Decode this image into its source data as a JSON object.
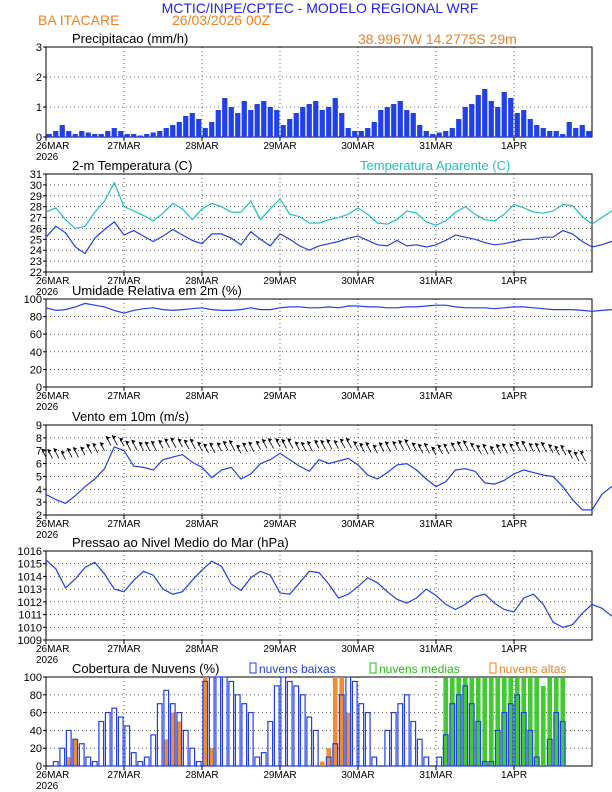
{
  "header": {
    "agency": "MCTIC/INPE/CPTEC - MODELO REGIONAL WRF",
    "location": "BA ITACARE",
    "run": "26/03/2026 00Z",
    "coords": "38.9967W 14.2775S 29m"
  },
  "colors": {
    "title": "#2222ee",
    "orange": "#f08020",
    "blue": "#2040e8",
    "cyan": "#20c0c0",
    "green": "#22c010",
    "black": "#000000"
  },
  "time_axis": {
    "days": [
      "26MAR",
      "27MAR",
      "28MAR",
      "29MAR",
      "30MAR",
      "31MAR",
      "1APR"
    ],
    "year": "2026",
    "hours_total": 168
  },
  "chart_data": [
    {
      "type": "bar",
      "title": "Precipitacao (mm/h)",
      "ylim": [
        0,
        3
      ],
      "yticks": [
        "0",
        "1",
        "2",
        "3"
      ],
      "x_hours_step": 2,
      "values": [
        0.1,
        0.2,
        0.4,
        0.2,
        0.1,
        0.2,
        0.15,
        0.1,
        0.1,
        0.2,
        0.3,
        0.2,
        0.1,
        0.1,
        0.05,
        0.1,
        0.15,
        0.2,
        0.3,
        0.4,
        0.5,
        0.7,
        0.8,
        0.6,
        0.3,
        0.5,
        0.9,
        1.3,
        1.0,
        0.8,
        1.2,
        0.9,
        1.1,
        1.2,
        1.0,
        0.9,
        0.4,
        0.6,
        0.8,
        1.0,
        1.1,
        1.2,
        0.9,
        1.0,
        1.3,
        0.8,
        0.3,
        0.2,
        0.2,
        0.3,
        0.5,
        0.9,
        1.0,
        1.1,
        1.2,
        0.9,
        0.8,
        0.4,
        0.2,
        0.1,
        0.15,
        0.2,
        0.3,
        0.6,
        1.0,
        1.1,
        1.4,
        1.6,
        1.2,
        1.0,
        1.5,
        1.3,
        0.8,
        0.9,
        0.6,
        0.4,
        0.3,
        0.2,
        0.2,
        0.1,
        0.5,
        0.3,
        0.4,
        0.2
      ]
    },
    {
      "type": "line",
      "title": "2-m Temperatura (C)",
      "legend": "Temperatura Aparente (C)",
      "ylim": [
        22,
        31
      ],
      "yticks": [
        "22",
        "23",
        "24",
        "25",
        "26",
        "27",
        "28",
        "29",
        "30",
        "31"
      ],
      "x_hours_step": 3,
      "series": [
        {
          "name": "Temperatura Aparente (C)",
          "color_key": "cyan",
          "values": [
            27.5,
            27.9,
            26.8,
            26.0,
            26.2,
            27.5,
            28.5,
            30.2,
            28.0,
            27.6,
            27.2,
            26.7,
            27.4,
            28.3,
            27.8,
            26.8,
            27.8,
            28.3,
            28.0,
            27.5,
            27.5,
            28.5,
            26.8,
            27.8,
            28.7,
            27.3,
            27.1,
            26.5,
            26.5,
            26.8,
            27.0,
            27.3,
            27.9,
            27.3,
            26.5,
            26.4,
            26.8,
            27.6,
            27.4,
            26.6,
            26.3,
            26.7,
            27.5,
            28.0,
            27.3,
            26.8,
            26.7,
            27.3,
            28.2,
            27.9,
            27.5,
            27.4,
            27.6,
            28.2,
            28.1,
            27.1,
            26.4,
            27.0,
            27.6,
            27.9,
            26.8,
            26.5,
            26.9,
            27.5,
            27.3,
            27.0,
            26.5,
            26.6,
            27.2,
            27.3,
            26.7,
            26.6,
            27.0,
            26.9,
            27.1,
            26.5,
            27.2,
            27.4,
            27.3,
            27.5
          ]
        },
        {
          "name": "2-m Temperatura (C)",
          "color_key": "blue",
          "values": [
            25.2,
            26.2,
            25.6,
            24.3,
            23.7,
            25.1,
            25.9,
            26.6,
            25.4,
            25.8,
            25.3,
            24.8,
            25.3,
            25.9,
            25.4,
            24.9,
            24.6,
            25.5,
            25.5,
            25.1,
            24.5,
            25.7,
            25.0,
            24.4,
            25.5,
            25.0,
            24.4,
            24.0,
            24.4,
            24.6,
            24.8,
            25.1,
            25.3,
            24.9,
            24.5,
            24.4,
            24.9,
            24.4,
            24.5,
            24.3,
            24.5,
            24.9,
            25.4,
            25.2,
            25.0,
            24.7,
            24.5,
            24.6,
            24.8,
            25.0,
            25.0,
            25.2,
            25.2,
            25.8,
            25.5,
            24.8,
            24.3,
            24.5,
            24.8,
            25.0,
            24.5,
            24.3,
            24.4,
            24.6,
            24.7,
            24.7,
            24.5,
            24.3,
            24.4,
            24.6,
            24.3,
            24.5,
            24.6,
            24.7,
            24.5,
            24.1,
            25.3,
            25.4,
            25.6,
            25.8
          ]
        }
      ]
    },
    {
      "type": "line",
      "title": "Umidade Relativa em 2m (%)",
      "ylim": [
        0,
        100
      ],
      "yticks": [
        "0",
        "20",
        "40",
        "60",
        "80",
        "100"
      ],
      "x_hours_step": 3,
      "series": [
        {
          "name": "Umidade Relativa",
          "color_key": "blue",
          "values": [
            90,
            87,
            88,
            91,
            95,
            93,
            91,
            87,
            84,
            87,
            89,
            90,
            88,
            87,
            88,
            89,
            90,
            88,
            87,
            87,
            88,
            90,
            88,
            88,
            90,
            91,
            91,
            90,
            90,
            91,
            90,
            92,
            92,
            91,
            91,
            90,
            90,
            91,
            91,
            92,
            93,
            93,
            91,
            90,
            90,
            90,
            89,
            90,
            91,
            91,
            90,
            89,
            88,
            88,
            88,
            87,
            86,
            87,
            88,
            90,
            91,
            90,
            90,
            91,
            91,
            90,
            90,
            90,
            90,
            90,
            89,
            89,
            89,
            88,
            88,
            88,
            88,
            87,
            85,
            82
          ]
        }
      ]
    },
    {
      "type": "line",
      "title": "Vento em 10m (m/s)",
      "ylim": [
        2,
        9
      ],
      "yticks": [
        "2",
        "3",
        "4",
        "5",
        "6",
        "7",
        "8",
        "9"
      ],
      "x_hours_step": 3,
      "wind_barbs": true,
      "series": [
        {
          "name": "Vento em 10m",
          "color_key": "blue",
          "values": [
            3.6,
            3.2,
            2.9,
            3.5,
            4.2,
            4.8,
            5.6,
            7.3,
            7.0,
            5.8,
            5.7,
            5.5,
            6.3,
            6.5,
            6.7,
            6.1,
            5.7,
            4.9,
            5.5,
            5.7,
            4.8,
            5.2,
            6.0,
            6.3,
            6.8,
            6.3,
            5.8,
            5.4,
            6.3,
            6.0,
            6.2,
            6.4,
            5.9,
            5.1,
            4.8,
            5.3,
            5.9,
            6.0,
            5.5,
            4.8,
            4.2,
            4.6,
            5.5,
            5.6,
            5.4,
            4.5,
            4.4,
            4.7,
            5.2,
            5.5,
            5.3,
            5.1,
            5.0,
            4.2,
            3.2,
            2.4,
            2.4,
            3.6,
            4.2,
            4.5,
            4.4,
            3.9,
            3.3,
            3.1,
            3.7,
            3.3,
            3.1,
            3.7,
            3.9,
            4.5,
            4.3,
            3.8,
            3.4,
            3.1,
            3.6,
            3.7,
            4.1,
            5.0,
            5.1,
            5.4
          ]
        }
      ]
    },
    {
      "type": "line",
      "title": "Pressao ao Nivel Medio do Mar (hPa)",
      "ylim": [
        1009,
        1016
      ],
      "yticks": [
        "1009",
        "1010",
        "1011",
        "1012",
        "1013",
        "1014",
        "1015",
        "1016"
      ],
      "x_hours_step": 3,
      "series": [
        {
          "name": "Pressao",
          "color_key": "blue",
          "values": [
            1015.3,
            1014.6,
            1013.1,
            1013.8,
            1014.7,
            1015.1,
            1014.2,
            1013.0,
            1012.8,
            1013.7,
            1014.4,
            1014.1,
            1013.0,
            1012.6,
            1012.8,
            1013.7,
            1014.5,
            1015.2,
            1014.8,
            1013.4,
            1012.9,
            1013.9,
            1014.4,
            1014.1,
            1012.7,
            1012.6,
            1013.5,
            1014.4,
            1014.3,
            1013.4,
            1012.3,
            1012.6,
            1013.2,
            1013.9,
            1013.5,
            1012.8,
            1012.2,
            1011.9,
            1012.3,
            1013.0,
            1012.5,
            1011.8,
            1011.4,
            1011.8,
            1012.4,
            1012.6,
            1011.9,
            1011.4,
            1011.2,
            1012.3,
            1012.6,
            1011.8,
            1010.4,
            1010.0,
            1010.2,
            1011.1,
            1011.8,
            1011.5,
            1010.9,
            1010.6,
            1011.1,
            1011.7,
            1012.0,
            1011.6,
            1011.2,
            1011.3,
            1011.9,
            1012.4,
            1012.7,
            1012.1,
            1011.8,
            1012.3,
            1012.9,
            1013.5,
            1013.4,
            1012.6,
            1012.3,
            1012.4,
            1013.1,
            1013.8
          ]
        }
      ]
    },
    {
      "type": "bar",
      "title": "Cobertura de Nuvens (%)",
      "ylim": [
        0,
        100
      ],
      "yticks": [
        "0",
        "20",
        "40",
        "60",
        "80",
        "100"
      ],
      "x_hours_step": 2,
      "series": [
        {
          "name": "nuvens baixas",
          "color_key": "blue",
          "values": [
            0,
            5,
            20,
            40,
            30,
            25,
            10,
            5,
            50,
            60,
            65,
            55,
            45,
            15,
            5,
            10,
            35,
            70,
            85,
            70,
            60,
            40,
            20,
            5,
            95,
            100,
            100,
            100,
            95,
            80,
            70,
            60,
            10,
            15,
            50,
            90,
            100,
            95,
            90,
            80,
            55,
            40,
            0,
            10,
            25,
            80,
            100,
            95,
            70,
            60,
            10,
            0,
            40,
            60,
            70,
            80,
            50,
            30,
            10,
            0,
            10,
            35,
            70,
            80,
            90,
            70,
            50,
            5,
            5,
            40,
            60,
            70,
            80,
            60,
            40,
            10,
            0,
            30,
            60,
            50
          ]
        },
        {
          "name": "nuvens medias",
          "color_key": "green",
          "values": [
            0,
            0,
            0,
            0,
            0,
            0,
            0,
            0,
            0,
            0,
            0,
            0,
            0,
            0,
            0,
            0,
            0,
            0,
            0,
            0,
            0,
            0,
            0,
            0,
            0,
            0,
            0,
            0,
            0,
            0,
            0,
            0,
            0,
            0,
            0,
            0,
            0,
            0,
            0,
            0,
            0,
            0,
            0,
            0,
            0,
            0,
            0,
            0,
            0,
            0,
            0,
            0,
            0,
            0,
            0,
            0,
            0,
            0,
            0,
            0,
            0,
            100,
            100,
            100,
            100,
            100,
            100,
            100,
            100,
            100,
            100,
            100,
            100,
            100,
            100,
            100,
            90,
            100,
            100,
            100
          ]
        },
        {
          "name": "nuvens altas",
          "color_key": "orange",
          "values": [
            0,
            0,
            0,
            10,
            30,
            0,
            0,
            0,
            0,
            0,
            0,
            0,
            0,
            0,
            0,
            0,
            0,
            0,
            30,
            60,
            50,
            0,
            0,
            0,
            100,
            20,
            0,
            0,
            0,
            0,
            0,
            0,
            0,
            0,
            0,
            0,
            0,
            0,
            0,
            0,
            0,
            0,
            5,
            20,
            100,
            100,
            60,
            0,
            0,
            0,
            0,
            0,
            0,
            0,
            0,
            0,
            0,
            0,
            0,
            0,
            0,
            0,
            0,
            0,
            0,
            0,
            0,
            0,
            0,
            0,
            0,
            0,
            0,
            0,
            0,
            0,
            0,
            0,
            0,
            0
          ]
        }
      ]
    }
  ]
}
